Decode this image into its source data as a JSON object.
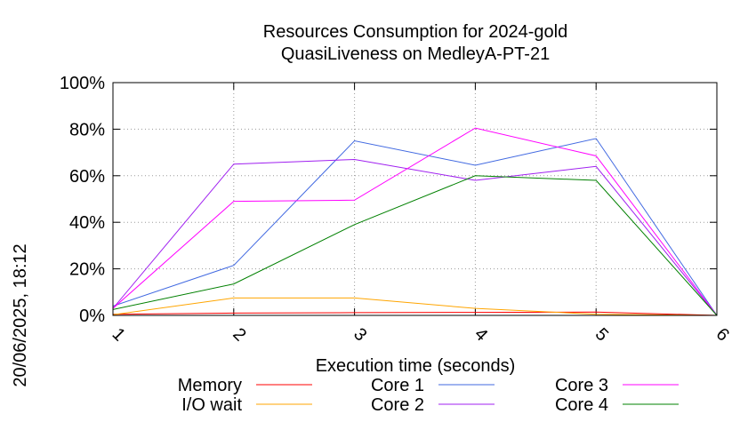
{
  "chart_data": {
    "type": "line",
    "title_line1": "Resources Consumption for 2024-gold",
    "title_line2": "QuasiLiveness on MedleyA-PT-21",
    "xlabel": "Execution time (seconds)",
    "ylabel": "",
    "side_label": "20/06/2025, 18:12",
    "x": [
      1,
      2,
      3,
      4,
      5,
      6
    ],
    "x_tick_labels": [
      "1",
      "2",
      "3",
      "4",
      "5",
      "6"
    ],
    "xlim": [
      1,
      6
    ],
    "ylim": [
      0,
      100
    ],
    "y_ticks": [
      0,
      20,
      40,
      60,
      80,
      100
    ],
    "y_tick_labels": [
      "0%",
      "20%",
      "40%",
      "60%",
      "80%",
      "100%"
    ],
    "grid": true,
    "legend_position": "bottom",
    "series": [
      {
        "name": "Memory",
        "color": "#ff0000",
        "values": [
          0.5,
          1,
          1.2,
          1.3,
          1.4,
          0
        ]
      },
      {
        "name": "I/O wait",
        "color": "#ffa500",
        "values": [
          0.3,
          7.5,
          7.5,
          3,
          0.5,
          0
        ]
      },
      {
        "name": "Core 1",
        "color": "#4169e1",
        "values": [
          4,
          21.5,
          75,
          64.5,
          76,
          0
        ]
      },
      {
        "name": "Core 2",
        "color": "#a020f0",
        "values": [
          3,
          65,
          67,
          58,
          64,
          0
        ]
      },
      {
        "name": "Core 3",
        "color": "#ff00ff",
        "values": [
          3,
          49,
          49.5,
          80.5,
          68.5,
          0
        ]
      },
      {
        "name": "Core 4",
        "color": "#008000",
        "values": [
          2.5,
          13.5,
          39,
          60,
          58,
          0
        ]
      }
    ]
  }
}
